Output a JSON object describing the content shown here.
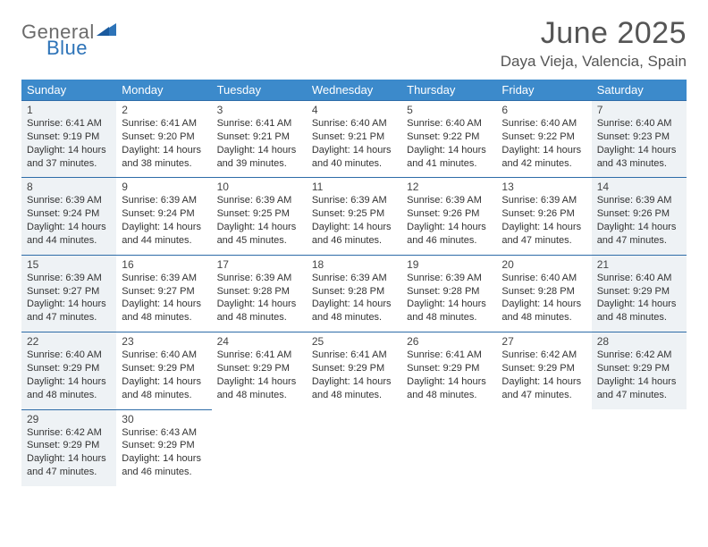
{
  "logo": {
    "general": "General",
    "blue": "Blue"
  },
  "title": "June 2025",
  "location": "Daya Vieja, Valencia, Spain",
  "colors": {
    "header_bg": "#3c8acb",
    "header_text": "#ffffff",
    "rule": "#2e6ca8",
    "shaded_bg": "#eef2f5",
    "text": "#333333",
    "title_text": "#555555",
    "logo_gray": "#6b6b6b",
    "logo_blue": "#2d73b8"
  },
  "weekdays": [
    "Sunday",
    "Monday",
    "Tuesday",
    "Wednesday",
    "Thursday",
    "Friday",
    "Saturday"
  ],
  "weeks": [
    [
      {
        "day": "1",
        "shaded": true,
        "sunrise": "6:41 AM",
        "sunset": "9:19 PM",
        "daylight": "14 hours and 37 minutes."
      },
      {
        "day": "2",
        "shaded": false,
        "sunrise": "6:41 AM",
        "sunset": "9:20 PM",
        "daylight": "14 hours and 38 minutes."
      },
      {
        "day": "3",
        "shaded": false,
        "sunrise": "6:41 AM",
        "sunset": "9:21 PM",
        "daylight": "14 hours and 39 minutes."
      },
      {
        "day": "4",
        "shaded": false,
        "sunrise": "6:40 AM",
        "sunset": "9:21 PM",
        "daylight": "14 hours and 40 minutes."
      },
      {
        "day": "5",
        "shaded": false,
        "sunrise": "6:40 AM",
        "sunset": "9:22 PM",
        "daylight": "14 hours and 41 minutes."
      },
      {
        "day": "6",
        "shaded": false,
        "sunrise": "6:40 AM",
        "sunset": "9:22 PM",
        "daylight": "14 hours and 42 minutes."
      },
      {
        "day": "7",
        "shaded": true,
        "sunrise": "6:40 AM",
        "sunset": "9:23 PM",
        "daylight": "14 hours and 43 minutes."
      }
    ],
    [
      {
        "day": "8",
        "shaded": true,
        "sunrise": "6:39 AM",
        "sunset": "9:24 PM",
        "daylight": "14 hours and 44 minutes."
      },
      {
        "day": "9",
        "shaded": false,
        "sunrise": "6:39 AM",
        "sunset": "9:24 PM",
        "daylight": "14 hours and 44 minutes."
      },
      {
        "day": "10",
        "shaded": false,
        "sunrise": "6:39 AM",
        "sunset": "9:25 PM",
        "daylight": "14 hours and 45 minutes."
      },
      {
        "day": "11",
        "shaded": false,
        "sunrise": "6:39 AM",
        "sunset": "9:25 PM",
        "daylight": "14 hours and 46 minutes."
      },
      {
        "day": "12",
        "shaded": false,
        "sunrise": "6:39 AM",
        "sunset": "9:26 PM",
        "daylight": "14 hours and 46 minutes."
      },
      {
        "day": "13",
        "shaded": false,
        "sunrise": "6:39 AM",
        "sunset": "9:26 PM",
        "daylight": "14 hours and 47 minutes."
      },
      {
        "day": "14",
        "shaded": true,
        "sunrise": "6:39 AM",
        "sunset": "9:26 PM",
        "daylight": "14 hours and 47 minutes."
      }
    ],
    [
      {
        "day": "15",
        "shaded": true,
        "sunrise": "6:39 AM",
        "sunset": "9:27 PM",
        "daylight": "14 hours and 47 minutes."
      },
      {
        "day": "16",
        "shaded": false,
        "sunrise": "6:39 AM",
        "sunset": "9:27 PM",
        "daylight": "14 hours and 48 minutes."
      },
      {
        "day": "17",
        "shaded": false,
        "sunrise": "6:39 AM",
        "sunset": "9:28 PM",
        "daylight": "14 hours and 48 minutes."
      },
      {
        "day": "18",
        "shaded": false,
        "sunrise": "6:39 AM",
        "sunset": "9:28 PM",
        "daylight": "14 hours and 48 minutes."
      },
      {
        "day": "19",
        "shaded": false,
        "sunrise": "6:39 AM",
        "sunset": "9:28 PM",
        "daylight": "14 hours and 48 minutes."
      },
      {
        "day": "20",
        "shaded": false,
        "sunrise": "6:40 AM",
        "sunset": "9:28 PM",
        "daylight": "14 hours and 48 minutes."
      },
      {
        "day": "21",
        "shaded": true,
        "sunrise": "6:40 AM",
        "sunset": "9:29 PM",
        "daylight": "14 hours and 48 minutes."
      }
    ],
    [
      {
        "day": "22",
        "shaded": true,
        "sunrise": "6:40 AM",
        "sunset": "9:29 PM",
        "daylight": "14 hours and 48 minutes."
      },
      {
        "day": "23",
        "shaded": false,
        "sunrise": "6:40 AM",
        "sunset": "9:29 PM",
        "daylight": "14 hours and 48 minutes."
      },
      {
        "day": "24",
        "shaded": false,
        "sunrise": "6:41 AM",
        "sunset": "9:29 PM",
        "daylight": "14 hours and 48 minutes."
      },
      {
        "day": "25",
        "shaded": false,
        "sunrise": "6:41 AM",
        "sunset": "9:29 PM",
        "daylight": "14 hours and 48 minutes."
      },
      {
        "day": "26",
        "shaded": false,
        "sunrise": "6:41 AM",
        "sunset": "9:29 PM",
        "daylight": "14 hours and 48 minutes."
      },
      {
        "day": "27",
        "shaded": false,
        "sunrise": "6:42 AM",
        "sunset": "9:29 PM",
        "daylight": "14 hours and 47 minutes."
      },
      {
        "day": "28",
        "shaded": true,
        "sunrise": "6:42 AM",
        "sunset": "9:29 PM",
        "daylight": "14 hours and 47 minutes."
      }
    ],
    [
      {
        "day": "29",
        "shaded": true,
        "sunrise": "6:42 AM",
        "sunset": "9:29 PM",
        "daylight": "14 hours and 47 minutes."
      },
      {
        "day": "30",
        "shaded": false,
        "sunrise": "6:43 AM",
        "sunset": "9:29 PM",
        "daylight": "14 hours and 46 minutes."
      },
      null,
      null,
      null,
      null,
      null
    ]
  ],
  "labels": {
    "sunrise": "Sunrise:",
    "sunset": "Sunset:",
    "daylight": "Daylight:"
  }
}
